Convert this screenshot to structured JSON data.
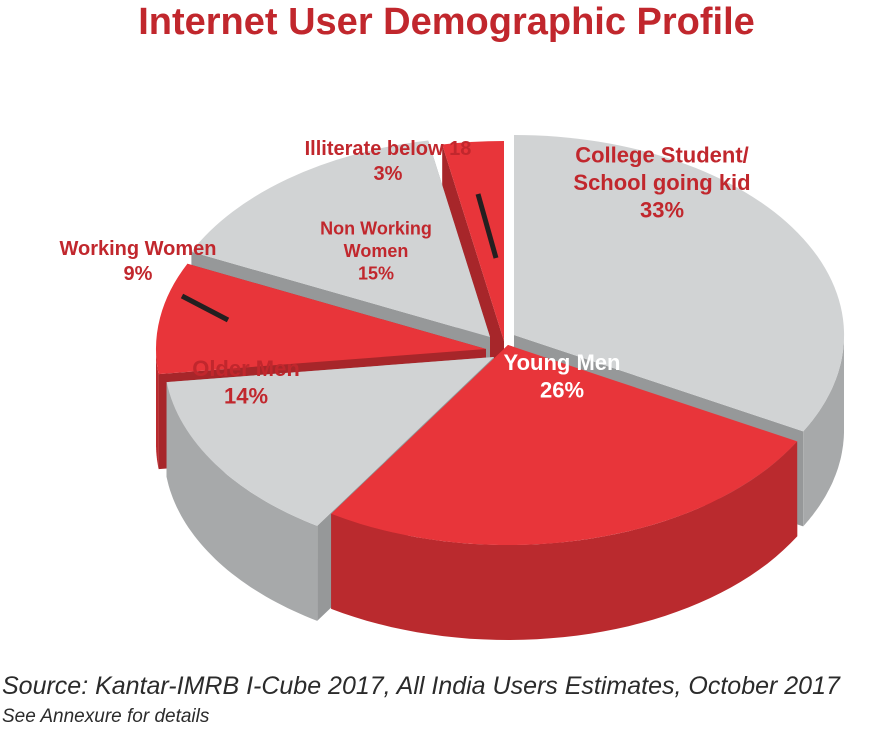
{
  "chart_data": {
    "type": "pie",
    "title": "Internet User Demographic Profile",
    "slices": [
      {
        "label": "College Student/ School going kid",
        "label_lines": [
          "College Student/",
          "School going kid"
        ],
        "value": 33,
        "value_label": "33%",
        "color": "#d1d3d4"
      },
      {
        "label": "Young Men",
        "label_lines": [
          "Young Men"
        ],
        "value": 26,
        "value_label": "26%",
        "color": "#e8353a"
      },
      {
        "label": "Older Men",
        "label_lines": [
          "Older Men"
        ],
        "value": 14,
        "value_label": "14%",
        "color": "#d1d3d4"
      },
      {
        "label": "Working Women",
        "label_lines": [
          "Working Women"
        ],
        "value": 9,
        "value_label": "9%",
        "color": "#e8353a"
      },
      {
        "label": "Non Working Women",
        "label_lines": [
          "Non Working",
          "Women"
        ],
        "value": 15,
        "value_label": "15%",
        "color": "#d1d3d4"
      },
      {
        "label": "Illiterate below 18",
        "label_lines": [
          "Illiterate below 18"
        ],
        "value": 3,
        "value_label": "3%",
        "color": "#e8353a"
      }
    ]
  },
  "source": "Source: Kantar-IMRB I-Cube 2017, All India Users Estimates, October 2017",
  "note": "See Annexure for details",
  "colors": {
    "red_label": "#c1272d",
    "gray_label": "#c1272d",
    "inner_red_label": "#ffffff"
  }
}
